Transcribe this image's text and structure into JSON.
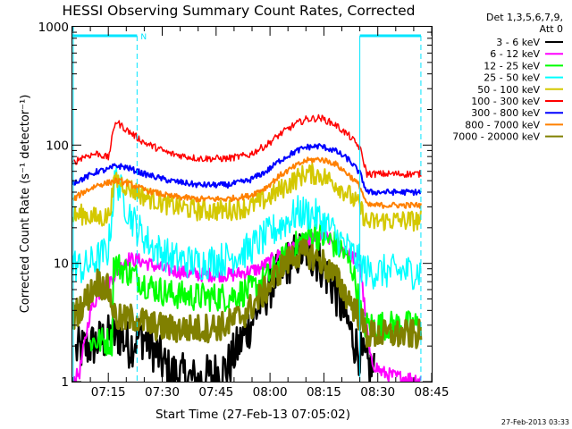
{
  "chart_data": {
    "type": "line",
    "title": "HESSI Observing Summary Count Rates, Corrected",
    "xlabel": "Start Time (27-Feb-13 07:05:02)",
    "ylabel": "Corrected Count Rate (s⁻¹ detector⁻¹)",
    "y_scale": "log",
    "ylim": [
      1,
      1000
    ],
    "xlim": [
      "07:05:02",
      "08:45:00"
    ],
    "x_tick_labels": [
      "07:15",
      "07:30",
      "07:45",
      "08:00",
      "08:15",
      "08:30",
      "08:45"
    ],
    "y_tick_labels": [
      "1",
      "10",
      "100",
      "1000"
    ],
    "timestamp": "27-Feb-2013 03:33",
    "legend": {
      "placement": "right",
      "header": [
        "Det 1,3,5,6,7,9,",
        "Att 0"
      ],
      "entries": [
        {
          "label": "3 - 6 keV",
          "color": "#000000"
        },
        {
          "label": "6 - 12 keV",
          "color": "#ff00ff"
        },
        {
          "label": "12 - 25 keV",
          "color": "#00ff00"
        },
        {
          "label": "25 - 50 keV",
          "color": "#00ffff"
        },
        {
          "label": "50 - 100 keV",
          "color": "#d4c800"
        },
        {
          "label": "100 - 300 keV",
          "color": "#ff0000"
        },
        {
          "label": "300 - 800 keV",
          "color": "#0000ff"
        },
        {
          "label": "800 - 7000 keV",
          "color": "#ff8000"
        },
        {
          "label": "7000 - 20000 keV",
          "color": "#808000"
        }
      ]
    },
    "bars": {
      "top_marker_label": "N",
      "spans": [
        [
          "07:05:02",
          "07:23:30"
        ],
        [
          "08:25:00",
          "08:42:00"
        ]
      ],
      "dashed_lines": [
        "07:23:30",
        "08:42:00"
      ],
      "solid_line": "08:25:00"
    },
    "series": [
      {
        "name": "3 - 6 keV",
        "color": "#000000",
        "noise": 0.4,
        "lw": 2.5,
        "x": [
          "07:06",
          "07:10",
          "07:14",
          "07:18",
          "07:21",
          "07:24",
          "07:27",
          "07:32",
          "07:40",
          "07:48",
          "07:53",
          "07:58",
          "08:02",
          "08:06",
          "08:10",
          "08:14",
          "08:18",
          "08:21",
          "08:24",
          "08:26",
          "08:29"
        ],
        "y": [
          1.8,
          2.0,
          2.3,
          2.5,
          2.0,
          2.5,
          2.0,
          1.2,
          1.0,
          1.3,
          2.5,
          5.0,
          8.0,
          11,
          13,
          10,
          6,
          3.5,
          2.0,
          1.5,
          1.2
        ]
      },
      {
        "name": "6 - 12 keV",
        "color": "#ff00ff",
        "noise": 0.12,
        "lw": 2,
        "x": [
          "07:05",
          "07:07",
          "07:10",
          "07:13",
          "07:17",
          "07:20",
          "07:24",
          "07:30",
          "07:40",
          "07:50",
          "07:57",
          "08:02",
          "08:07",
          "08:11",
          "08:15",
          "08:18",
          "08:22",
          "08:25",
          "08:28",
          "08:31",
          "08:35",
          "08:42"
        ],
        "y": [
          1.0,
          1.2,
          4.0,
          6.0,
          8.0,
          11,
          10.5,
          9.0,
          8.0,
          8.0,
          9.0,
          11.5,
          14,
          16,
          17,
          15,
          12,
          10,
          1.5,
          1.2,
          1.1,
          1.05
        ]
      },
      {
        "name": "12 - 25 keV",
        "color": "#00ff00",
        "noise": 0.25,
        "lw": 2,
        "x": [
          "07:10",
          "07:14",
          "07:16",
          "07:16.5",
          "07:19",
          "07:22",
          "07:26",
          "07:32",
          "07:40",
          "07:48",
          "07:55",
          "08:00",
          "08:04",
          "08:08",
          "08:12",
          "08:16",
          "08:20",
          "08:23",
          "08:26",
          "08:30",
          "08:36",
          "08:42"
        ],
        "y": [
          2.2,
          2.2,
          2.2,
          10,
          9.0,
          8.0,
          6.5,
          5.5,
          5.2,
          5.2,
          6.0,
          8.0,
          11,
          15,
          18,
          16,
          13,
          9,
          3.0,
          3.0,
          3.0,
          3.0
        ]
      },
      {
        "name": "25 - 50 keV",
        "color": "#00ffff",
        "noise": 0.3,
        "lw": 1.5,
        "x": [
          "07:05",
          "07:08",
          "07:12",
          "07:15",
          "07:17",
          "07:20",
          "07:23",
          "07:27",
          "07:33",
          "07:40",
          "07:48",
          "07:54",
          "07:59",
          "08:03",
          "08:08",
          "08:12",
          "08:16",
          "08:20",
          "08:24",
          "08:27",
          "08:32",
          "08:42"
        ],
        "y": [
          10,
          9.0,
          11,
          13,
          55,
          30,
          20,
          14,
          11,
          10,
          11,
          13,
          17,
          21,
          27,
          26,
          21,
          15,
          11,
          8.5,
          8.5,
          8.5
        ]
      },
      {
        "name": "50 - 100 keV",
        "color": "#d4c800",
        "noise": 0.18,
        "lw": 2,
        "x": [
          "07:05",
          "07:08",
          "07:12",
          "07:15",
          "07:17",
          "07:20",
          "07:25",
          "07:32",
          "07:40",
          "07:48",
          "07:54",
          "07:59",
          "08:03",
          "08:07",
          "08:10",
          "08:14",
          "08:18",
          "08:22",
          "08:25",
          "08:27",
          "08:32",
          "08:42"
        ],
        "y": [
          25,
          26,
          24,
          25,
          52,
          45,
          37,
          31,
          28,
          28,
          30,
          35,
          42,
          51,
          58,
          56,
          48,
          38,
          30,
          22,
          23,
          23
        ]
      },
      {
        "name": "100 - 300 keV",
        "color": "#ff0000",
        "noise": 0.06,
        "lw": 1.5,
        "x": [
          "07:05",
          "07:08",
          "07:12",
          "07:15",
          "07:17",
          "07:20",
          "07:25",
          "07:32",
          "07:40",
          "07:48",
          "07:54",
          "07:59",
          "08:03",
          "08:07",
          "08:10",
          "08:14",
          "08:18",
          "08:22",
          "08:25",
          "08:27",
          "08:32",
          "08:42"
        ],
        "y": [
          70,
          80,
          85,
          78,
          160,
          135,
          105,
          85,
          77,
          77,
          82,
          100,
          125,
          150,
          165,
          170,
          150,
          120,
          95,
          57,
          57,
          57
        ]
      },
      {
        "name": "300 - 800 keV",
        "color": "#0000ff",
        "noise": 0.05,
        "lw": 2,
        "x": [
          "07:05",
          "07:08",
          "07:12",
          "07:15",
          "07:17",
          "07:20",
          "07:25",
          "07:32",
          "07:40",
          "07:48",
          "07:54",
          "07:59",
          "08:03",
          "08:07",
          "08:10",
          "08:14",
          "08:18",
          "08:22",
          "08:25",
          "08:27",
          "08:32",
          "08:42"
        ],
        "y": [
          48,
          52,
          60,
          62,
          67,
          65,
          57,
          50,
          46,
          46,
          50,
          60,
          75,
          88,
          96,
          98,
          90,
          75,
          58,
          40,
          40,
          40
        ]
      },
      {
        "name": "800 - 7000 keV",
        "color": "#ff8000",
        "noise": 0.05,
        "lw": 2,
        "x": [
          "07:05",
          "07:08",
          "07:12",
          "07:15",
          "07:17",
          "07:20",
          "07:25",
          "07:32",
          "07:40",
          "07:48",
          "07:54",
          "07:59",
          "08:03",
          "08:07",
          "08:10",
          "08:14",
          "08:18",
          "08:22",
          "08:25",
          "08:27",
          "08:32",
          "08:42"
        ],
        "y": [
          34,
          40,
          46,
          48,
          50,
          48,
          42,
          37,
          35,
          35,
          37,
          44,
          56,
          66,
          74,
          76,
          70,
          56,
          45,
          31,
          31,
          31
        ]
      },
      {
        "name": "7000 - 20000 keV",
        "color": "#808000",
        "noise": 0.25,
        "lw": 3,
        "x": [
          "07:05",
          "07:08",
          "07:12",
          "07:15",
          "07:17",
          "07:19",
          "07:22",
          "07:27",
          "07:32",
          "07:40",
          "07:48",
          "07:54",
          "07:59",
          "08:03",
          "08:07",
          "08:11",
          "08:15",
          "08:19",
          "08:22",
          "08:25",
          "08:27",
          "08:33",
          "08:42"
        ],
        "y": [
          3.5,
          4.5,
          7.0,
          6.0,
          3.5,
          3.3,
          3.5,
          3.0,
          2.8,
          2.8,
          3.0,
          4.0,
          6.0,
          9.0,
          12,
          12,
          10,
          7.0,
          5.0,
          3.5,
          2.5,
          2.5,
          2.5
        ]
      }
    ]
  }
}
